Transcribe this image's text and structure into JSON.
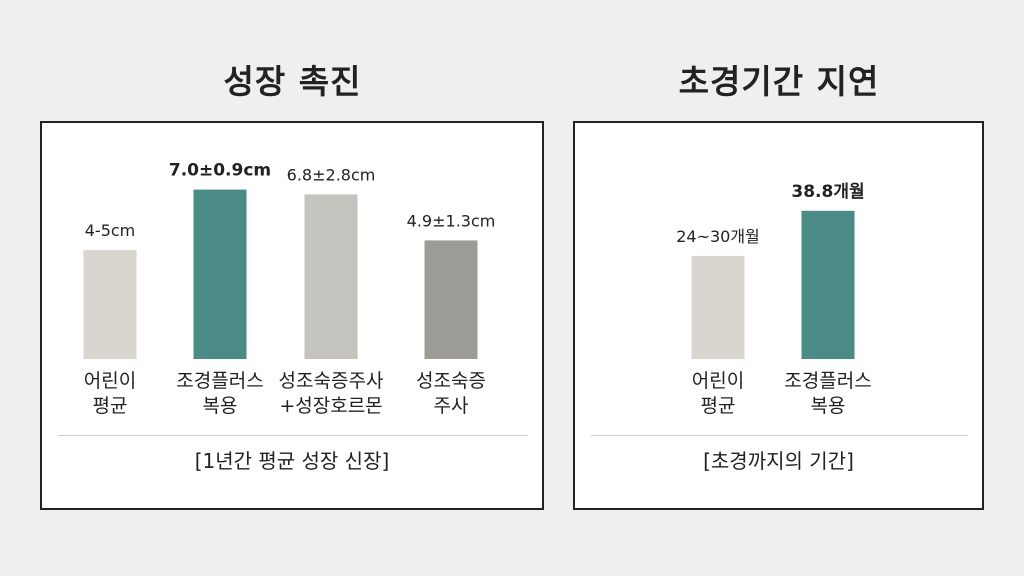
{
  "chart_data": [
    {
      "type": "bar",
      "title": "성장 촉진",
      "xlabel": "[1년간 평균 성장 신장]",
      "categories": [
        [
          "어린이",
          "평균"
        ],
        [
          "조경플러스",
          "복용"
        ],
        [
          "성조숙증주사",
          "+성장호르몬"
        ],
        [
          "성조숙증",
          "주사"
        ]
      ],
      "values": [
        4.5,
        7.0,
        6.8,
        4.9
      ],
      "labels": [
        "4-5cm",
        "7.0±0.9cm",
        "6.8±2.8cm",
        "4.9±1.3cm"
      ],
      "highlight_index": 1,
      "colors": [
        "#d8d6cf",
        "#4a8b85",
        "#c4c3bd",
        "#9d9b95"
      ],
      "ylim": [
        0,
        8
      ]
    },
    {
      "type": "bar",
      "title": "초경기간 지연",
      "xlabel": "[초경까지의 기간]",
      "categories": [
        [
          "어린이",
          "평균"
        ],
        [
          "조경플러스",
          "복용"
        ]
      ],
      "values": [
        27,
        38.8
      ],
      "labels": [
        "24~30개월",
        "38.8개월"
      ],
      "highlight_index": 1,
      "colors": [
        "#d8d6cf",
        "#4a8b85"
      ],
      "ylim": [
        0,
        45
      ]
    }
  ]
}
